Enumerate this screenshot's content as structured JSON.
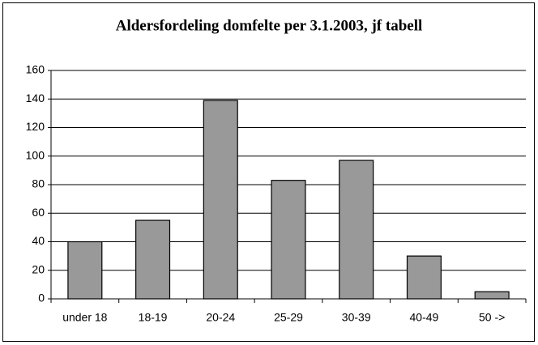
{
  "chart_data": {
    "type": "bar",
    "title": "Aldersfordeling domfelte per 3.1.2003, jf tabell",
    "categories": [
      "under 18",
      "18-19",
      "20-24",
      "25-29",
      "30-39",
      "40-49",
      "50 ->"
    ],
    "values": [
      40,
      55,
      139,
      83,
      97,
      30,
      5
    ],
    "color": "#999999",
    "ylim": [
      0,
      160
    ],
    "yticks": [
      0,
      20,
      40,
      60,
      80,
      100,
      120,
      140,
      160
    ],
    "grid": true
  }
}
